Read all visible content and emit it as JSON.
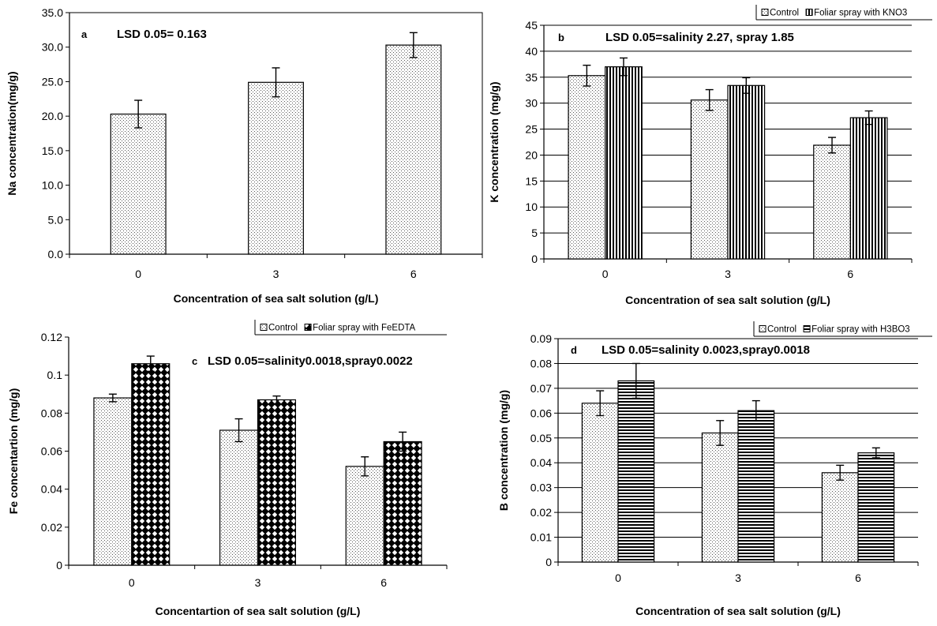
{
  "colors": {
    "axis": "#000000",
    "grid": "#000000",
    "bar_fill": "#ffffff",
    "text": "#000000"
  },
  "chart_data": [
    {
      "id": "a",
      "type": "bar",
      "panel_letter": "a",
      "annotation": "LSD 0.05=  0.163",
      "xlabel": "Concentration of sea salt solution (g/L)",
      "ylabel": "Na concentration(mg/g)",
      "categories": [
        "0",
        "3",
        "6"
      ],
      "ylim": [
        0,
        35
      ],
      "yticks": [
        "0.0",
        "5.0",
        "10.0",
        "15.0",
        "20.0",
        "25.0",
        "30.0",
        "35.0"
      ],
      "grid": false,
      "legend": [],
      "series": [
        {
          "pattern": "dots",
          "values": [
            20.3,
            24.9,
            30.3
          ],
          "err": [
            2.0,
            2.1,
            1.8
          ]
        }
      ]
    },
    {
      "id": "b",
      "type": "bar",
      "panel_letter": "b",
      "annotation": "LSD 0.05=salinity 2.27, spray 1.85",
      "xlabel": "Concentration of sea salt solution (g/L)",
      "ylabel": "K concentration  (mg/g)",
      "categories": [
        "0",
        "3",
        "6"
      ],
      "ylim": [
        0,
        45
      ],
      "yticks": [
        "0",
        "5",
        "10",
        "15",
        "20",
        "25",
        "30",
        "35",
        "40",
        "45"
      ],
      "grid": true,
      "legend_position": "top-right",
      "legend": [
        "Control",
        "Foliar spray with KNO3"
      ],
      "series": [
        {
          "name": "Control",
          "pattern": "dots",
          "values": [
            35.3,
            30.6,
            21.9
          ],
          "err": [
            2.0,
            2.0,
            1.5
          ]
        },
        {
          "name": "Foliar spray with KNO3",
          "pattern": "vlines",
          "values": [
            37.0,
            33.4,
            27.2
          ],
          "err": [
            1.7,
            1.5,
            1.3
          ]
        }
      ]
    },
    {
      "id": "c",
      "type": "bar",
      "panel_letter": "c",
      "annotation": "LSD 0.05=salinity0.0018,spray0.0022",
      "xlabel": "Concentartion of sea salt solution (g/L)",
      "ylabel": "Fe concentartion  (mg/g)",
      "categories": [
        "0",
        "3",
        "6"
      ],
      "ylim": [
        0,
        0.12
      ],
      "yticks": [
        "0",
        "0.02",
        "0.04",
        "0.06",
        "0.08",
        "0.1",
        "0.12"
      ],
      "grid": false,
      "legend_position": "top-right",
      "legend": [
        "Control",
        "Foliar spray with FeEDTA"
      ],
      "series": [
        {
          "name": "Control",
          "pattern": "dots",
          "values": [
            0.088,
            0.071,
            0.052
          ],
          "err": [
            0.002,
            0.006,
            0.005
          ]
        },
        {
          "name": "Foliar spray with FeEDTA",
          "pattern": "diamonds",
          "values": [
            0.106,
            0.087,
            0.065
          ],
          "err": [
            0.004,
            0.002,
            0.005
          ]
        }
      ]
    },
    {
      "id": "d",
      "type": "bar",
      "panel_letter": "d",
      "annotation": "LSD 0.05=salinity 0.0023,spray0.0018",
      "xlabel": "Concentration of sea salt solution (g/L)",
      "ylabel": "B concentration  (mg/g)",
      "categories": [
        "0",
        "3",
        "6"
      ],
      "ylim": [
        0,
        0.09
      ],
      "yticks": [
        "0",
        "0.01",
        "0.02",
        "0.03",
        "0.04",
        "0.05",
        "0.06",
        "0.07",
        "0.08",
        "0.09"
      ],
      "grid": true,
      "legend_position": "top-right",
      "legend": [
        "Control",
        "Foliar spray with H3BO3"
      ],
      "series": [
        {
          "name": "Control",
          "pattern": "dots",
          "values": [
            0.064,
            0.052,
            0.036
          ],
          "err": [
            0.005,
            0.005,
            0.003
          ]
        },
        {
          "name": "Foliar spray with H3BO3",
          "pattern": "hlines",
          "values": [
            0.073,
            0.061,
            0.044
          ],
          "err": [
            0.007,
            0.004,
            0.002
          ]
        }
      ]
    }
  ]
}
